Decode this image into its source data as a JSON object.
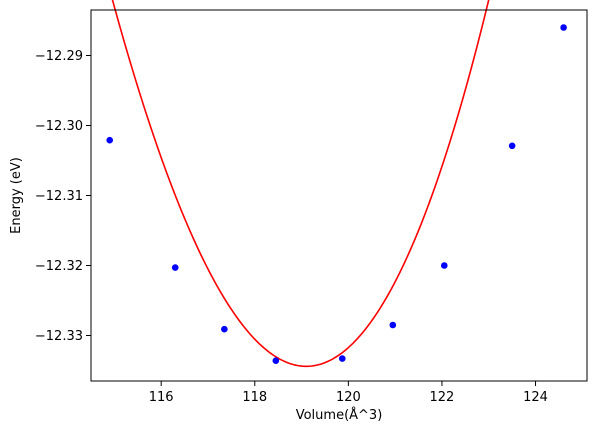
{
  "chart_data": {
    "type": "scatter",
    "title": "",
    "xlabel": "Volume(Å^3)",
    "ylabel": "Energy (eV)",
    "xlim": [
      114.5,
      125.1
    ],
    "ylim": [
      -12.3365,
      -12.2835
    ],
    "xticks": [
      116,
      118,
      120,
      122,
      124
    ],
    "yticks": [
      -12.33,
      -12.32,
      -12.31,
      -12.3,
      -12.29
    ],
    "xtick_labels": [
      "116",
      "118",
      "120",
      "122",
      "124"
    ],
    "ytick_labels": [
      "−12.33",
      "−12.32",
      "−12.31",
      "−12.30",
      "−12.29"
    ],
    "grid": false,
    "series": [
      {
        "kind": "markers",
        "color": "#0000ff",
        "x": [
          114.9,
          116.3,
          117.35,
          118.45,
          119.87,
          120.95,
          122.05,
          123.5,
          124.6
        ],
        "y": [
          -12.3021,
          -12.3203,
          -12.3291,
          -12.3336,
          -12.3333,
          -12.3285,
          -12.32,
          -12.3029,
          -12.286
        ]
      },
      {
        "kind": "fit-line",
        "color": "#ff0000",
        "fit": {
          "x_min_energy": 119.1,
          "e_min": -12.3344,
          "curvature": 0.003253,
          "cubic": 4.85e-05
        }
      }
    ]
  }
}
